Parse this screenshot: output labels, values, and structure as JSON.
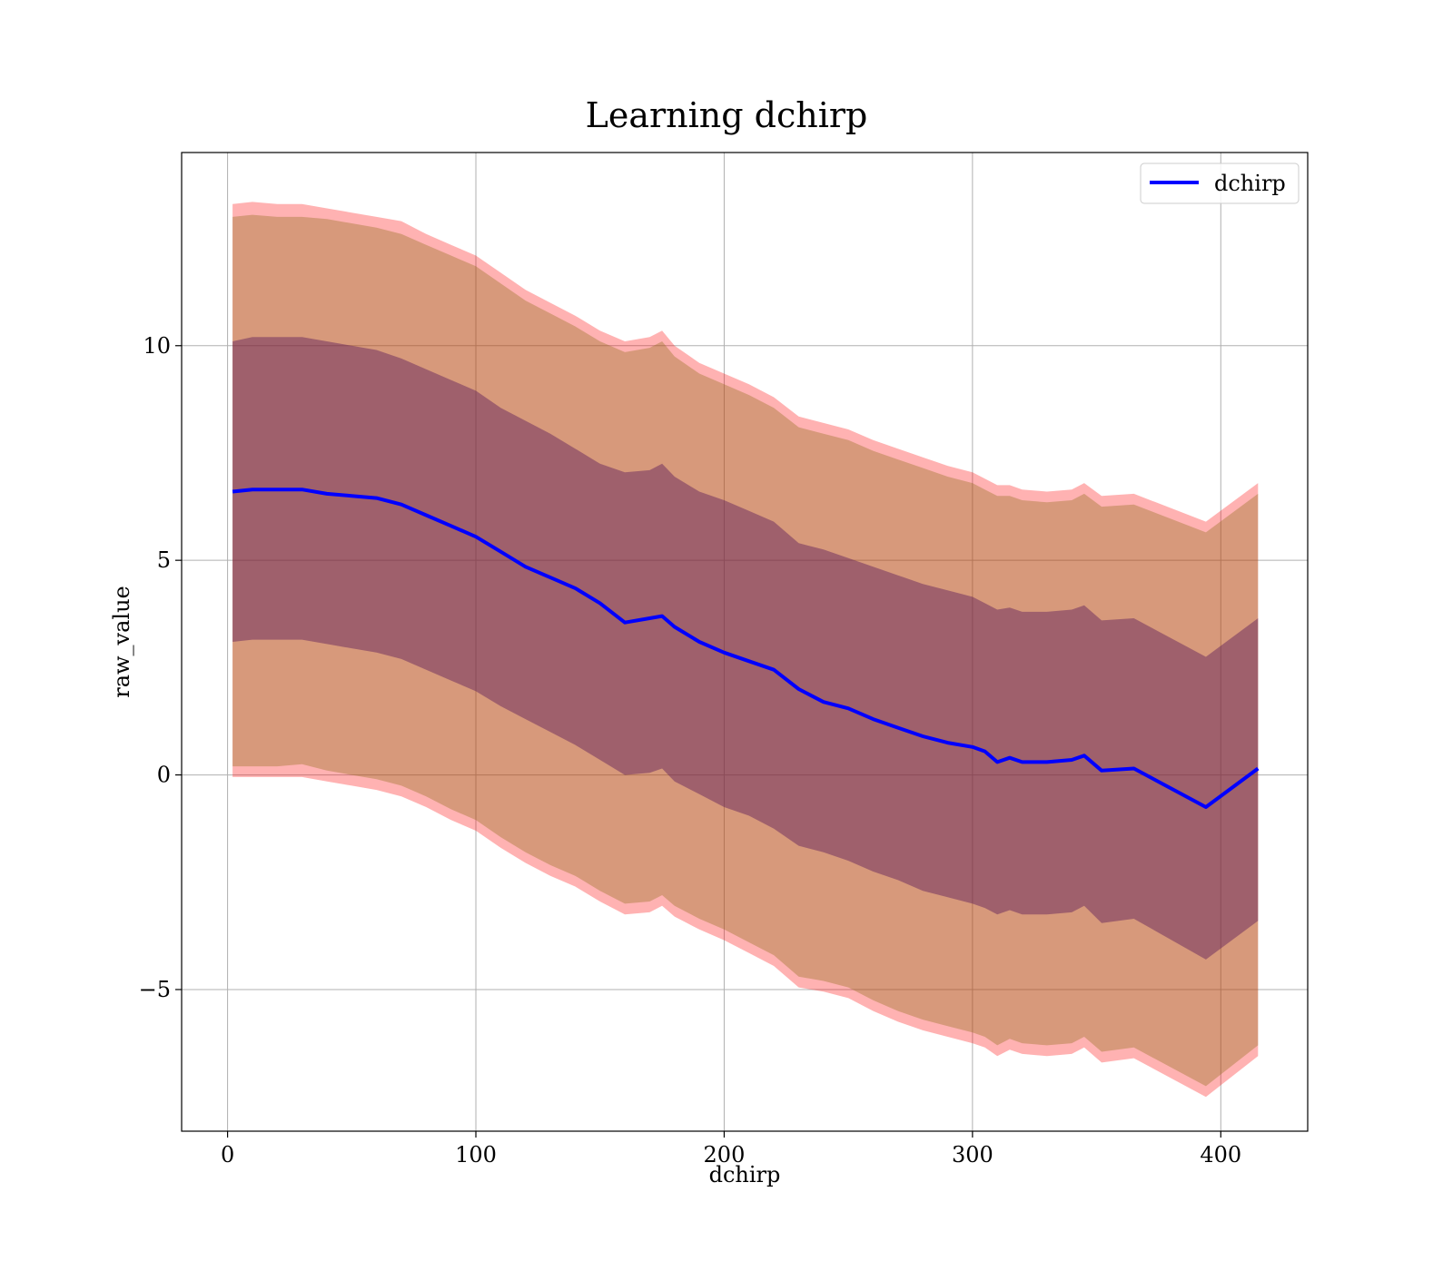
{
  "chart_data": {
    "type": "line",
    "title": "Learning dchirp",
    "xlabel": "dchirp",
    "ylabel": "raw_value",
    "xlim": [
      -18.5,
      435
    ],
    "ylim": [
      -8.3,
      14.5
    ],
    "xticks": [
      0,
      100,
      200,
      300,
      400
    ],
    "yticks": [
      10,
      5,
      0,
      -5
    ],
    "ytick_labels": [
      "10",
      "5",
      "0",
      "−5"
    ],
    "grid": true,
    "legend": {
      "position": "top-right",
      "entries": [
        "dchirp"
      ]
    },
    "colors": {
      "line": "#0000ff",
      "outer_band": "#ff0000",
      "middle_band": "#8b6914",
      "inner_band": "#5a1a5a",
      "grid": "#b0b0b0"
    },
    "x": [
      2,
      10,
      20,
      30,
      40,
      50,
      60,
      70,
      80,
      90,
      100,
      110,
      120,
      130,
      140,
      150,
      160,
      170,
      175,
      180,
      190,
      200,
      210,
      220,
      230,
      240,
      250,
      260,
      270,
      280,
      290,
      300,
      305,
      310,
      315,
      320,
      330,
      340,
      345,
      352,
      365,
      394,
      415
    ],
    "series": [
      {
        "name": "dchirp",
        "values": [
          6.6,
          6.65,
          6.65,
          6.65,
          6.55,
          6.5,
          6.45,
          6.3,
          6.05,
          5.8,
          5.55,
          5.2,
          4.85,
          4.6,
          4.35,
          4.0,
          3.55,
          3.65,
          3.7,
          3.45,
          3.1,
          2.85,
          2.65,
          2.45,
          2.0,
          1.7,
          1.55,
          1.3,
          1.1,
          0.9,
          0.75,
          0.65,
          0.55,
          0.3,
          0.4,
          0.3,
          0.3,
          0.35,
          0.45,
          0.1,
          0.15,
          -0.75,
          0.15
        ]
      }
    ],
    "bands": [
      {
        "name": "outer",
        "upper": [
          13.3,
          13.35,
          13.3,
          13.3,
          13.2,
          13.1,
          13.0,
          12.9,
          12.6,
          12.35,
          12.1,
          11.7,
          11.3,
          11.0,
          10.7,
          10.35,
          10.1,
          10.2,
          10.35,
          10.0,
          9.6,
          9.35,
          9.1,
          8.8,
          8.35,
          8.2,
          8.05,
          7.8,
          7.6,
          7.4,
          7.2,
          7.05,
          6.9,
          6.75,
          6.75,
          6.65,
          6.6,
          6.65,
          6.8,
          6.5,
          6.55,
          5.9,
          6.8
        ],
        "lower": [
          -0.05,
          -0.05,
          -0.05,
          -0.05,
          -0.15,
          -0.25,
          -0.35,
          -0.5,
          -0.75,
          -1.05,
          -1.3,
          -1.7,
          -2.05,
          -2.35,
          -2.6,
          -2.95,
          -3.25,
          -3.2,
          -3.05,
          -3.3,
          -3.6,
          -3.85,
          -4.15,
          -4.45,
          -4.95,
          -5.05,
          -5.2,
          -5.5,
          -5.75,
          -5.95,
          -6.1,
          -6.25,
          -6.35,
          -6.55,
          -6.4,
          -6.5,
          -6.55,
          -6.5,
          -6.35,
          -6.7,
          -6.6,
          -7.5,
          -6.55
        ]
      },
      {
        "name": "middle",
        "upper": [
          13.0,
          13.05,
          13.0,
          13.0,
          12.95,
          12.85,
          12.75,
          12.6,
          12.35,
          12.1,
          11.85,
          11.45,
          11.05,
          10.75,
          10.45,
          10.1,
          9.85,
          9.95,
          10.1,
          9.75,
          9.35,
          9.1,
          8.85,
          8.55,
          8.1,
          7.95,
          7.8,
          7.55,
          7.35,
          7.15,
          6.95,
          6.8,
          6.65,
          6.5,
          6.5,
          6.4,
          6.35,
          6.4,
          6.55,
          6.25,
          6.3,
          5.65,
          6.55
        ],
        "lower": [
          0.2,
          0.2,
          0.2,
          0.25,
          0.1,
          0.0,
          -0.1,
          -0.25,
          -0.5,
          -0.8,
          -1.05,
          -1.45,
          -1.8,
          -2.1,
          -2.35,
          -2.7,
          -3.0,
          -2.95,
          -2.8,
          -3.05,
          -3.35,
          -3.6,
          -3.9,
          -4.2,
          -4.7,
          -4.8,
          -4.95,
          -5.25,
          -5.5,
          -5.7,
          -5.85,
          -6.0,
          -6.1,
          -6.3,
          -6.15,
          -6.25,
          -6.3,
          -6.25,
          -6.1,
          -6.45,
          -6.35,
          -7.25,
          -6.3
        ]
      },
      {
        "name": "inner",
        "upper": [
          10.1,
          10.2,
          10.2,
          10.2,
          10.1,
          10.0,
          9.9,
          9.7,
          9.45,
          9.2,
          8.95,
          8.55,
          8.25,
          7.95,
          7.6,
          7.25,
          7.05,
          7.1,
          7.25,
          6.95,
          6.6,
          6.4,
          6.15,
          5.9,
          5.4,
          5.25,
          5.05,
          4.85,
          4.65,
          4.45,
          4.3,
          4.15,
          4.0,
          3.85,
          3.9,
          3.8,
          3.8,
          3.85,
          3.95,
          3.6,
          3.65,
          2.75,
          3.65
        ],
        "lower": [
          3.1,
          3.15,
          3.15,
          3.15,
          3.05,
          2.95,
          2.85,
          2.7,
          2.45,
          2.2,
          1.95,
          1.6,
          1.3,
          1.0,
          0.7,
          0.35,
          0.0,
          0.05,
          0.15,
          -0.15,
          -0.45,
          -0.75,
          -0.95,
          -1.25,
          -1.65,
          -1.8,
          -2.0,
          -2.25,
          -2.45,
          -2.7,
          -2.85,
          -3.0,
          -3.1,
          -3.25,
          -3.15,
          -3.25,
          -3.25,
          -3.2,
          -3.05,
          -3.45,
          -3.35,
          -4.3,
          -3.4
        ]
      }
    ]
  }
}
